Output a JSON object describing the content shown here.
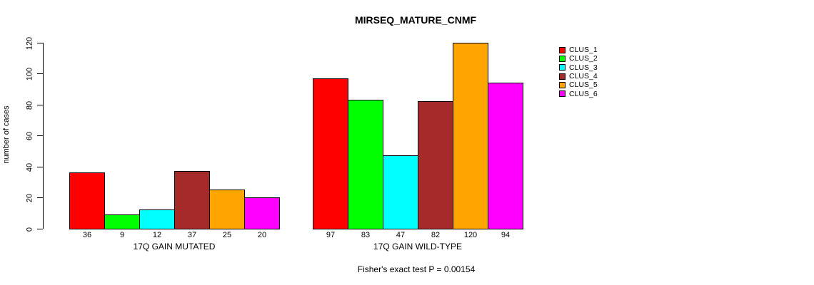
{
  "chart_data": {
    "type": "bar",
    "title": "MIRSEQ_MATURE_CNMF",
    "ylabel": "number of cases",
    "xlabel": "",
    "ylim": [
      0,
      120
    ],
    "yticks": [
      0,
      20,
      40,
      60,
      80,
      100,
      120
    ],
    "grid": false,
    "legend_position": "right",
    "show_bar_values": true,
    "bar_border_color": "#000000",
    "categories": [
      "17Q GAIN MUTATED",
      "17Q GAIN WILD-TYPE"
    ],
    "series": [
      {
        "name": "CLUS_1",
        "color": "#ff0000",
        "values": [
          36,
          97
        ]
      },
      {
        "name": "CLUS_2",
        "color": "#00ff00",
        "values": [
          9,
          83
        ]
      },
      {
        "name": "CLUS_3",
        "color": "#00ffff",
        "values": [
          12,
          47
        ]
      },
      {
        "name": "CLUS_4",
        "color": "#a52a2a",
        "values": [
          37,
          82
        ]
      },
      {
        "name": "CLUS_5",
        "color": "#ffa500",
        "values": [
          25,
          120
        ]
      },
      {
        "name": "CLUS_6",
        "color": "#ff00ff",
        "values": [
          20,
          94
        ]
      }
    ],
    "annotation": "Fisher's exact test P = 0.00154"
  }
}
